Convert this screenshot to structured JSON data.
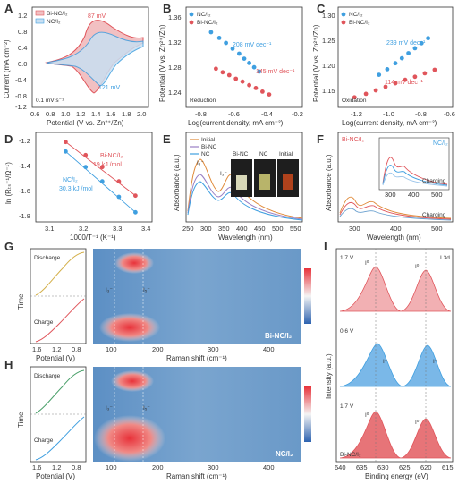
{
  "colors": {
    "red": "#e0555b",
    "blue": "#3f9fe0",
    "orange": "#e08a3a",
    "purple": "#9a7fc4"
  },
  "panels": {
    "A": {
      "letter": "A",
      "legend": [
        "Bi-NC/I₂",
        "NC/I₂"
      ],
      "ann_top": "87 mV",
      "ann_bottom": "121 mV",
      "scan_rate": "0.1 mV s⁻¹",
      "xlabel": "Potential (V vs. Zn²⁺/Zn)",
      "ylabel": "Current (mA cm⁻²)",
      "xticks": [
        "0.6",
        "0.8",
        "1.0",
        "1.2",
        "1.4",
        "1.6",
        "1.8",
        "2.0"
      ],
      "yticks": [
        "1.2",
        "0.8",
        "0.4",
        "0.0",
        "-0.4",
        "-0.8",
        "-1.2"
      ]
    },
    "B": {
      "letter": "B",
      "legend": [
        "NC/I₂",
        "Bi-NC/I₂"
      ],
      "ann_blue": "208 mV dec⁻¹",
      "ann_red": "145 mV dec⁻¹",
      "tag": "Reduction",
      "xlabel": "Log(current density, mA cm⁻²)",
      "ylabel": "Potential (V vs. Zn²⁺/Zn)",
      "xticks": [
        "-0.8",
        "-0.6",
        "-0.4",
        "-0.2"
      ],
      "yticks": [
        "1.36",
        "1.32",
        "1.28",
        "1.24"
      ]
    },
    "C": {
      "letter": "C",
      "legend": [
        "NC/I₂",
        "Bi-NC/I₂"
      ],
      "ann_blue": "239 mV dec⁻¹",
      "ann_red": "114 mV dec⁻¹",
      "tag": "Oxidation",
      "xlabel": "Log(current density, mA cm⁻²)",
      "ylabel": "Potential (V vs. Zn²⁺/Zn)",
      "xticks": [
        "-1.2",
        "-1.0",
        "-0.8",
        "-0.6"
      ],
      "yticks": [
        "1.30",
        "1.25",
        "1.20",
        "1.15"
      ]
    },
    "D": {
      "letter": "D",
      "ann_red1": "Bi-NC/I₂",
      "ann_red2": "19 kJ /mol",
      "ann_blue1": "NC/I₂",
      "ann_blue2": "30.3 kJ /mol",
      "xlabel": "1000/T⁻¹ (K⁻¹)",
      "ylabel": "ln (Rₜₛ⁻¹/Ω⁻¹)",
      "xticks": [
        "3.1",
        "3.2",
        "3.3",
        "3.4"
      ],
      "yticks": [
        "-1.2",
        "-1.4",
        "-1.6",
        "-1.8"
      ]
    },
    "E": {
      "letter": "E",
      "legend": [
        "Initial",
        "Bi-NC",
        "NC"
      ],
      "vial_labels": [
        "Bi-NC",
        "NC",
        "Initial"
      ],
      "peak1": "I₃⁻",
      "peak2": "I₃⁻",
      "xlabel": "Wavelength (nm)",
      "ylabel": "Absorbance (a.u.)",
      "xticks": [
        "250",
        "300",
        "350",
        "400",
        "450",
        "500",
        "550"
      ]
    },
    "F": {
      "letter": "F",
      "title_left": "Bi-NC/I₂",
      "title_inset": "NC/I₂",
      "charging_inset": "Charging",
      "charging_main": "Charging",
      "xlabel": "Wavelength (nm)",
      "ylabel": "Absorbance (a.u.)",
      "xticks": [
        "300",
        "400",
        "500"
      ],
      "inset_xticks": [
        "300",
        "400",
        "500"
      ]
    },
    "G": {
      "letter": "G",
      "discharge": "Discharge",
      "charge": "Charge",
      "ylabel": "Time",
      "potential_label": "Potential (V)",
      "pot_ticks": [
        "1.6",
        "1.2",
        "0.8"
      ],
      "raman_label": "Raman shift (cm⁻¹)",
      "raman_ticks": [
        "100",
        "200",
        "300",
        "400"
      ],
      "peak1": "I₃⁻",
      "peak2": "I₅⁻",
      "sample": "Bi-NC/I₂"
    },
    "H": {
      "letter": "H",
      "discharge": "Discharge",
      "charge": "Charge",
      "ylabel": "Time",
      "potential_label": "Potential (V)",
      "pot_ticks": [
        "1.6",
        "1.2",
        "0.8"
      ],
      "raman_label": "Raman shift (cm⁻¹)",
      "raman_ticks": [
        "100",
        "200",
        "300",
        "400"
      ],
      "peak1": "I₃⁻",
      "peak2": "I₅⁻",
      "sample": "NC/I₂"
    },
    "I": {
      "letter": "I",
      "v1": "1.7 V",
      "v2": "0.6 V",
      "v3": "1.7 V",
      "region": "I 3d",
      "i0": "I⁰",
      "iminus": "I⁻",
      "sample": "Bi-NC/I₂",
      "xlabel": "Binding energy (eV)",
      "ylabel": "Intensity (a.u.)",
      "xticks": [
        "640",
        "635",
        "630",
        "625",
        "620",
        "615"
      ]
    }
  },
  "chart_data": [
    {
      "type": "scatter",
      "panel": "B",
      "series": [
        {
          "name": "NC/I₂",
          "x": [
            -0.75,
            -0.7,
            -0.66,
            -0.62,
            -0.58,
            -0.55,
            -0.52,
            -0.49,
            -0.46
          ],
          "y": [
            1.335,
            1.327,
            1.32,
            1.312,
            1.305,
            1.298,
            1.292,
            1.286,
            1.28
          ]
        },
        {
          "name": "Bi-NC/I₂",
          "x": [
            -0.72,
            -0.68,
            -0.64,
            -0.6,
            -0.56,
            -0.52,
            -0.48,
            -0.44,
            -0.4
          ],
          "y": [
            1.284,
            1.279,
            1.275,
            1.27,
            1.266,
            1.261,
            1.257,
            1.252,
            1.248
          ]
        }
      ],
      "ylim": [
        1.23,
        1.37
      ],
      "xlim": [
        -0.9,
        -0.2
      ]
    },
    {
      "type": "scatter",
      "panel": "C",
      "series": [
        {
          "name": "NC/I₂",
          "x": [
            -1.0,
            -0.95,
            -0.9,
            -0.86,
            -0.82,
            -0.78,
            -0.74,
            -0.7
          ],
          "y": [
            1.195,
            1.206,
            1.218,
            1.228,
            1.238,
            1.248,
            1.258,
            1.268
          ]
        },
        {
          "name": "Bi-NC/I₂",
          "x": [
            -1.15,
            -1.08,
            -1.02,
            -0.96,
            -0.9,
            -0.84,
            -0.78,
            -0.72,
            -0.66
          ],
          "y": [
            1.15,
            1.157,
            1.164,
            1.171,
            1.178,
            1.185,
            1.191,
            1.198,
            1.205
          ]
        }
      ],
      "ylim": [
        1.13,
        1.33
      ],
      "xlim": [
        -1.25,
        -0.55
      ]
    },
    {
      "type": "scatter",
      "panel": "D",
      "series": [
        {
          "name": "Bi-NC/I₂",
          "x": [
            3.14,
            3.2,
            3.25,
            3.3,
            3.35
          ],
          "y": [
            -1.18,
            -1.29,
            -1.39,
            -1.51,
            -1.63
          ]
        },
        {
          "name": "NC/I₂",
          "x": [
            3.14,
            3.2,
            3.25,
            3.3,
            3.35
          ],
          "y": [
            -1.26,
            -1.39,
            -1.51,
            -1.64,
            -1.77
          ]
        }
      ],
      "ylim": [
        -1.85,
        -1.1
      ],
      "xlim": [
        3.05,
        3.4
      ]
    }
  ]
}
